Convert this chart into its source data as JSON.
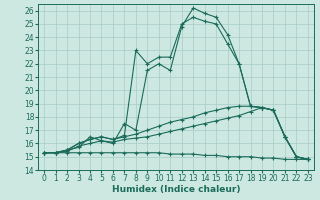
{
  "xlabel": "Humidex (Indice chaleur)",
  "xlim": [
    -0.5,
    23.5
  ],
  "ylim": [
    14,
    26.5
  ],
  "yticks": [
    14,
    15,
    16,
    17,
    18,
    19,
    20,
    21,
    22,
    23,
    24,
    25,
    26
  ],
  "xticks": [
    0,
    1,
    2,
    3,
    4,
    5,
    6,
    7,
    8,
    9,
    10,
    11,
    12,
    13,
    14,
    15,
    16,
    17,
    18,
    19,
    20,
    21,
    22,
    23
  ],
  "bg_color": "#cde8e1",
  "grid_color": "#a8ccc7",
  "line_color": "#1a6b5a",
  "lines": [
    {
      "x": [
        0,
        1,
        2,
        3,
        4,
        5,
        6,
        7,
        8,
        9,
        10,
        11,
        12,
        13,
        14,
        15,
        16,
        17,
        18,
        19,
        20,
        21,
        22,
        23
      ],
      "y": [
        15.3,
        15.3,
        15.5,
        15.7,
        16.5,
        16.2,
        16.0,
        17.5,
        17.0,
        21.5,
        22.0,
        21.5,
        24.8,
        26.2,
        25.8,
        25.5,
        24.2,
        22.0,
        18.8,
        18.7,
        18.5,
        16.5,
        15.0,
        14.8
      ]
    },
    {
      "x": [
        0,
        1,
        2,
        3,
        4,
        5,
        6,
        7,
        8,
        9,
        10,
        11,
        12,
        13,
        14,
        15,
        16,
        17,
        18,
        19,
        20,
        21,
        22,
        23
      ],
      "y": [
        15.3,
        15.3,
        15.5,
        16.0,
        16.3,
        16.5,
        16.3,
        16.6,
        23.0,
        22.0,
        22.5,
        22.5,
        25.0,
        25.5,
        25.2,
        25.0,
        23.5,
        22.0,
        18.8,
        18.7,
        18.5,
        16.5,
        15.0,
        14.8
      ]
    },
    {
      "x": [
        0,
        1,
        2,
        3,
        4,
        5,
        6,
        7,
        8,
        9,
        10,
        11,
        12,
        13,
        14,
        15,
        16,
        17,
        18,
        19,
        20,
        21,
        22,
        23
      ],
      "y": [
        15.3,
        15.3,
        15.5,
        16.0,
        16.3,
        16.5,
        16.3,
        16.5,
        16.7,
        17.0,
        17.3,
        17.6,
        17.8,
        18.0,
        18.3,
        18.5,
        18.7,
        18.8,
        18.8,
        18.7,
        18.5,
        16.5,
        15.0,
        14.8
      ]
    },
    {
      "x": [
        0,
        1,
        2,
        3,
        4,
        5,
        6,
        7,
        8,
        9,
        10,
        11,
        12,
        13,
        14,
        15,
        16,
        17,
        18,
        19,
        20,
        21,
        22,
        23
      ],
      "y": [
        15.3,
        15.3,
        15.4,
        15.8,
        16.0,
        16.2,
        16.1,
        16.3,
        16.4,
        16.5,
        16.7,
        16.9,
        17.1,
        17.3,
        17.5,
        17.7,
        17.9,
        18.1,
        18.4,
        18.7,
        18.5,
        16.5,
        15.0,
        14.8
      ]
    },
    {
      "x": [
        0,
        1,
        2,
        3,
        4,
        5,
        6,
        7,
        8,
        9,
        10,
        11,
        12,
        13,
        14,
        15,
        16,
        17,
        18,
        19,
        20,
        21,
        22,
        23
      ],
      "y": [
        15.3,
        15.3,
        15.3,
        15.3,
        15.3,
        15.3,
        15.3,
        15.3,
        15.3,
        15.3,
        15.3,
        15.2,
        15.2,
        15.2,
        15.1,
        15.1,
        15.0,
        15.0,
        15.0,
        14.9,
        14.9,
        14.8,
        14.8,
        14.8
      ]
    }
  ]
}
